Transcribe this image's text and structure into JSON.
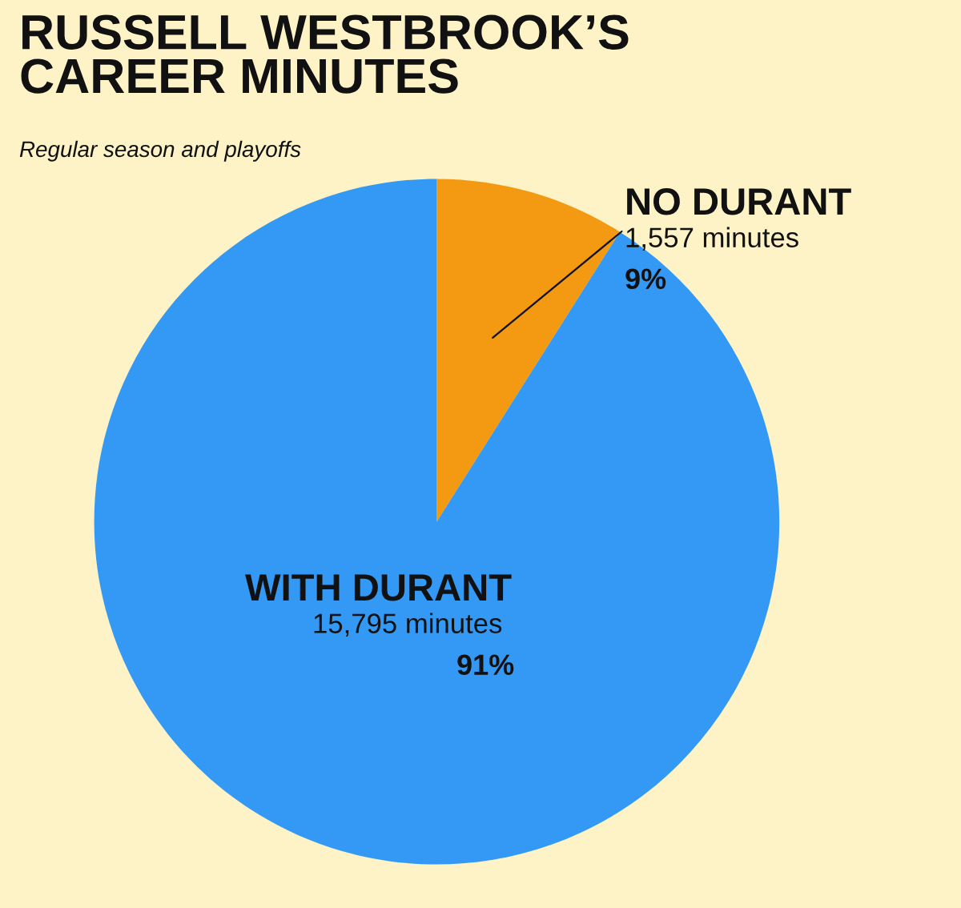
{
  "chart_data": {
    "type": "pie",
    "title": "RUSSELL WESTBROOK’S\nCAREER MINUTES",
    "subtitle": "Regular season and playoffs",
    "categories": [
      "NO DURANT",
      "WITH DURANT"
    ],
    "values": [
      1557,
      15795
    ],
    "colors": [
      "#f39a12",
      "#3399f5"
    ],
    "value_labels": [
      "1,557 minutes\n9%",
      "15,795 minutes\n91%"
    ],
    "legend": false
  }
}
